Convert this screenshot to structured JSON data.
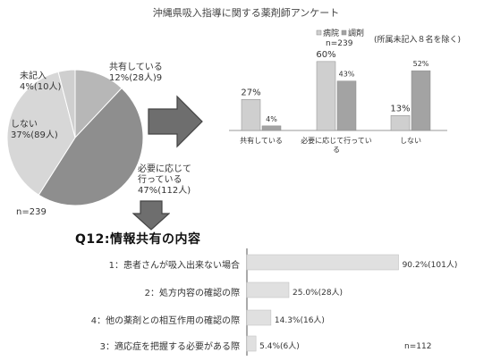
{
  "title": "沖縄県吸入指導に関する薬剤師アンケート",
  "colors": {
    "pie_dark": "#8e8e8e",
    "pie_mid": "#b7b7b7",
    "pie_light": "#d7d7d7",
    "pie_lighter": "#cfcfcf",
    "bar_hospital": "#cfcfcf",
    "bar_pharmacy": "#a3a3a3",
    "arrow": "#6e6e6e",
    "hbar": "#e0e0e0"
  },
  "chart_data": [
    {
      "type": "pie",
      "slices": [
        {
          "label_lines": [
            "共有している",
            "12%(28人)9"
          ],
          "value": 12,
          "count": 28
        },
        {
          "label_lines": [
            "必要に応じて",
            "行っている",
            "47%(112人)"
          ],
          "value": 47,
          "count": 112
        },
        {
          "label_lines": [
            "しない",
            "37%(89人)"
          ],
          "value": 37,
          "count": 89
        },
        {
          "label_lines": [
            "未記入",
            "4%(10人)"
          ],
          "value": 4,
          "count": 10
        }
      ],
      "note": "n=239"
    },
    {
      "type": "bar",
      "legend": [
        "病院",
        "調剤"
      ],
      "legend_n": "n=239",
      "annotation": "(所属未記入８名を除く)",
      "categories": [
        "共有している",
        "必要に応じて行っている",
        "しない"
      ],
      "category_label_lines": [
        [
          "共有している"
        ],
        [
          "必要に応じて行ってい",
          "る"
        ],
        [
          "しない"
        ]
      ],
      "series": [
        {
          "name": "病院",
          "values": [
            27,
            60,
            13
          ],
          "labels": [
            "27%",
            "60%",
            "13%"
          ]
        },
        {
          "name": "調剤",
          "values": [
            4,
            43,
            52
          ],
          "labels": [
            "4%",
            "43%",
            "52%"
          ]
        }
      ],
      "ylim": [
        0,
        70
      ]
    },
    {
      "type": "bar",
      "orientation": "horizontal",
      "title": "Q12:情報共有の内容",
      "categories": [
        "1：患者さんが吸入出来ない場合",
        "2：処方内容の確認の際",
        "4：他の薬剤との相互作用の確認の際",
        "3：適応症を把握する必要がある際"
      ],
      "values": [
        90.2,
        25.0,
        14.3,
        5.4
      ],
      "value_labels": [
        "90.2%(101人)",
        "25.0%(28人)",
        "14.3%(16人)",
        "5.4%(6人)"
      ],
      "xlim": [
        0,
        100
      ],
      "note": "n=112"
    }
  ]
}
